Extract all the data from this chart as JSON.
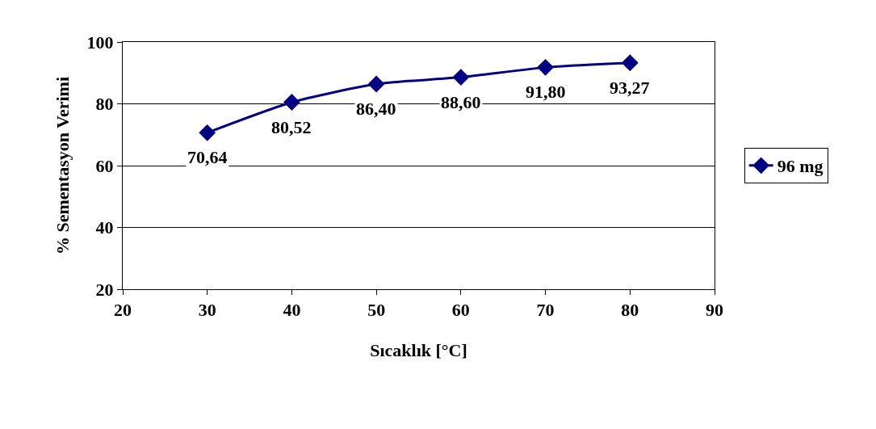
{
  "chart_data": {
    "type": "line",
    "xlabel": "Sıcaklık [°C]",
    "ylabel": "% Sementasyon Verimi",
    "x": [
      30,
      40,
      50,
      60,
      70,
      80
    ],
    "series": [
      {
        "name": "96 mg",
        "color": "#000080",
        "values": [
          70.64,
          80.52,
          86.4,
          88.6,
          91.8,
          93.27
        ],
        "value_labels": [
          "70,64",
          "80,52",
          "86,40",
          "88,60",
          "91,80",
          "93,27"
        ]
      }
    ],
    "xlim": [
      20,
      90
    ],
    "xticks": [
      20,
      30,
      40,
      50,
      60,
      70,
      80,
      90
    ],
    "ylim": [
      20,
      100
    ],
    "yticks": [
      20,
      40,
      60,
      80,
      100
    ],
    "grid": "y",
    "legend": "right",
    "marker": "diamond",
    "line_style": "solid"
  }
}
